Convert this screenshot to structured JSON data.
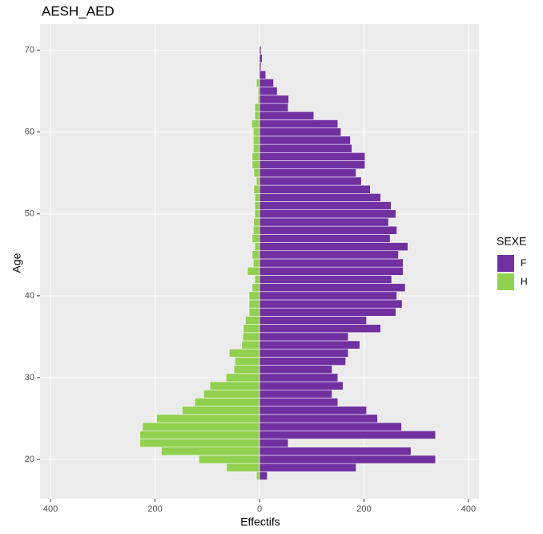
{
  "chart_data": {
    "type": "bar",
    "orientation": "horizontal",
    "title": "AESH_AED",
    "x_label": "Effectifs",
    "y_label": "Age",
    "legend_title": "SEXE",
    "legend_position": "right",
    "grid": true,
    "y": [
      18,
      19,
      20,
      21,
      22,
      23,
      24,
      25,
      26,
      27,
      28,
      29,
      30,
      31,
      32,
      33,
      34,
      35,
      36,
      37,
      38,
      39,
      40,
      41,
      42,
      43,
      44,
      45,
      46,
      47,
      48,
      49,
      50,
      51,
      52,
      53,
      54,
      55,
      56,
      57,
      58,
      59,
      60,
      61,
      62,
      63,
      64,
      65,
      66,
      67,
      68,
      69,
      70
    ],
    "series": [
      {
        "name": "F",
        "color": "#7030a0",
        "values": [
          15,
          185,
          337,
          290,
          55,
          337,
          272,
          226,
          205,
          150,
          139,
          160,
          150,
          139,
          165,
          170,
          192,
          170,
          232,
          205,
          261,
          273,
          263,
          279,
          253,
          275,
          275,
          266,
          284,
          250,
          263,
          247,
          261,
          252,
          232,
          212,
          195,
          185,
          202,
          202,
          177,
          174,
          156,
          150,
          104,
          55,
          56,
          34,
          27,
          12,
          3,
          5,
          3
        ]
      },
      {
        "name": "H",
        "color": "#92d050",
        "values": [
          -6,
          -63,
          -116,
          -188,
          -229,
          -229,
          -224,
          -197,
          -148,
          -124,
          -107,
          -95,
          -64,
          -49,
          -47,
          -58,
          -34,
          -32,
          -31,
          -27,
          -20,
          -20,
          -20,
          -14,
          -9,
          -23,
          -12,
          -14,
          -9,
          -14,
          -12,
          -11,
          -9,
          -9,
          -9,
          -11,
          -6,
          -11,
          -14,
          -14,
          -12,
          -12,
          -12,
          -15,
          -9,
          -9,
          -3,
          -3,
          -6,
          0,
          0,
          0,
          0
        ]
      }
    ],
    "xlim": [
      -420,
      420
    ],
    "xticks": [
      {
        "value": -400,
        "label": "400"
      },
      {
        "value": -200,
        "label": "200"
      },
      0,
      200,
      400
    ],
    "ylim": [
      15.2,
      73.2
    ],
    "yticks": [
      20,
      30,
      40,
      50,
      60,
      70
    ]
  }
}
